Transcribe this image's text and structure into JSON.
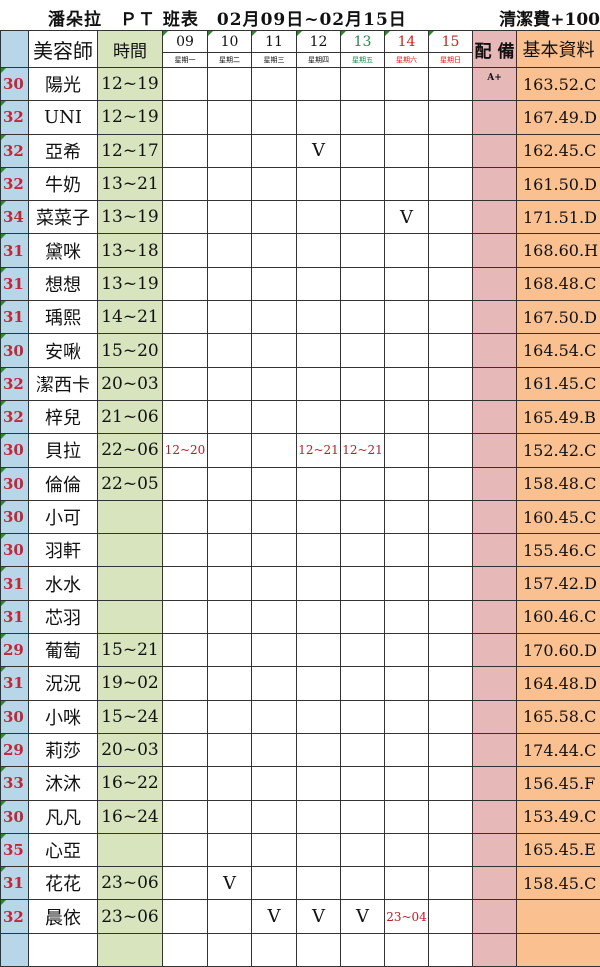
{
  "title": "潘朵拉　ＰＴ 班表　02月09日~02月15日",
  "fee": "清潔費+100",
  "headers": {
    "beautician": "美容師",
    "time": "時間",
    "equip": "配 備",
    "info": "基本資料"
  },
  "days": [
    {
      "date": "09",
      "weekday": "星期一",
      "color": "normal"
    },
    {
      "date": "10",
      "weekday": "星期二",
      "color": "normal"
    },
    {
      "date": "11",
      "weekday": "星期三",
      "color": "normal"
    },
    {
      "date": "12",
      "weekday": "星期四",
      "color": "normal"
    },
    {
      "date": "13",
      "weekday": "星期五",
      "color": "green"
    },
    {
      "date": "14",
      "weekday": "星期六",
      "color": "red"
    },
    {
      "date": "15",
      "weekday": "星期日",
      "color": "red"
    }
  ],
  "colors": {
    "num_bg": "#b7d7e8",
    "time_bg": "#d7e4bd",
    "equip_bg": "#e6b9b8",
    "info_bg": "#fac090",
    "num_text": "#c0283a",
    "green": "#1e8a4a",
    "red": "#d42020"
  },
  "rows": [
    {
      "num": "30",
      "name": "陽光",
      "time": "12~19",
      "days": [
        "",
        "",
        "",
        "",
        "",
        "",
        ""
      ],
      "equip": "A+",
      "info": "163.52.C"
    },
    {
      "num": "32",
      "name": "UNI",
      "time": "12~19",
      "days": [
        "",
        "",
        "",
        "",
        "",
        "",
        ""
      ],
      "equip": "",
      "info": "167.49.D"
    },
    {
      "num": "32",
      "name": "亞希",
      "time": "12~17",
      "days": [
        "",
        "",
        "",
        "V",
        "",
        "",
        ""
      ],
      "equip": "",
      "info": "162.45.C"
    },
    {
      "num": "32",
      "name": "牛奶",
      "time": "13~21",
      "days": [
        "",
        "",
        "",
        "",
        "",
        "",
        ""
      ],
      "equip": "",
      "info": "161.50.D"
    },
    {
      "num": "34",
      "name": "菜菜子",
      "time": "13~19",
      "days": [
        "",
        "",
        "",
        "",
        "",
        "V",
        ""
      ],
      "equip": "",
      "info": "171.51.D"
    },
    {
      "num": "31",
      "name": "黛咪",
      "time": "13~18",
      "days": [
        "",
        "",
        "",
        "",
        "",
        "",
        ""
      ],
      "equip": "",
      "info": "168.60.H"
    },
    {
      "num": "31",
      "name": "想想",
      "time": "13~19",
      "days": [
        "",
        "",
        "",
        "",
        "",
        "",
        ""
      ],
      "equip": "",
      "info": "168.48.C"
    },
    {
      "num": "31",
      "name": "瑀熙",
      "time": "14~21",
      "days": [
        "",
        "",
        "",
        "",
        "",
        "",
        ""
      ],
      "equip": "",
      "info": "167.50.D"
    },
    {
      "num": "30",
      "name": "安啾",
      "time": "15~20",
      "days": [
        "",
        "",
        "",
        "",
        "",
        "",
        ""
      ],
      "equip": "",
      "info": "164.54.C"
    },
    {
      "num": "32",
      "name": "潔西卡",
      "time": "20~03",
      "days": [
        "",
        "",
        "",
        "",
        "",
        "",
        ""
      ],
      "equip": "",
      "info": "161.45.C"
    },
    {
      "num": "32",
      "name": "梓兒",
      "time": "21~06",
      "days": [
        "",
        "",
        "",
        "",
        "",
        "",
        ""
      ],
      "equip": "",
      "info": "165.49.B"
    },
    {
      "num": "30",
      "name": "貝拉",
      "time": "22~06",
      "days": [
        "12~20",
        "",
        "",
        "12~21",
        "12~21",
        "",
        ""
      ],
      "equip": "",
      "info": "152.42.C"
    },
    {
      "num": "30",
      "name": "倫倫",
      "time": "22~05",
      "days": [
        "",
        "",
        "",
        "",
        "",
        "",
        ""
      ],
      "equip": "",
      "info": "158.48.C"
    },
    {
      "num": "30",
      "name": "小可",
      "time": "",
      "days": [
        "",
        "",
        "",
        "",
        "",
        "",
        ""
      ],
      "equip": "",
      "info": "160.45.C"
    },
    {
      "num": "30",
      "name": "羽軒",
      "time": "",
      "days": [
        "",
        "",
        "",
        "",
        "",
        "",
        ""
      ],
      "equip": "",
      "info": "155.46.C"
    },
    {
      "num": "31",
      "name": "水水",
      "time": "",
      "days": [
        "",
        "",
        "",
        "",
        "",
        "",
        ""
      ],
      "equip": "",
      "info": "157.42.D"
    },
    {
      "num": "31",
      "name": "芯羽",
      "time": "",
      "days": [
        "",
        "",
        "",
        "",
        "",
        "",
        ""
      ],
      "equip": "",
      "info": "160.46.C"
    },
    {
      "num": "29",
      "name": "葡萄",
      "time": "15~21",
      "days": [
        "",
        "",
        "",
        "",
        "",
        "",
        ""
      ],
      "equip": "",
      "info": "170.60.D"
    },
    {
      "num": "31",
      "name": "況況",
      "time": "19~02",
      "days": [
        "",
        "",
        "",
        "",
        "",
        "",
        ""
      ],
      "equip": "",
      "info": "164.48.D"
    },
    {
      "num": "30",
      "name": "小咪",
      "time": "15~24",
      "days": [
        "",
        "",
        "",
        "",
        "",
        "",
        ""
      ],
      "equip": "",
      "info": "165.58.C"
    },
    {
      "num": "29",
      "name": "莉莎",
      "time": "20~03",
      "days": [
        "",
        "",
        "",
        "",
        "",
        "",
        ""
      ],
      "equip": "",
      "info": "174.44.C"
    },
    {
      "num": "33",
      "name": "沐沐",
      "time": "16~22",
      "days": [
        "",
        "",
        "",
        "",
        "",
        "",
        ""
      ],
      "equip": "",
      "info": "156.45.F"
    },
    {
      "num": "30",
      "name": "凡凡",
      "time": "16~24",
      "days": [
        "",
        "",
        "",
        "",
        "",
        "",
        ""
      ],
      "equip": "",
      "info": "153.49.C"
    },
    {
      "num": "35",
      "name": "心亞",
      "time": "",
      "days": [
        "",
        "",
        "",
        "",
        "",
        "",
        ""
      ],
      "equip": "",
      "info": "165.45.E"
    },
    {
      "num": "31",
      "name": "花花",
      "time": "23~06",
      "days": [
        "",
        "V",
        "",
        "",
        "",
        "",
        ""
      ],
      "equip": "",
      "info": "158.45.C"
    },
    {
      "num": "32",
      "name": "晨依",
      "time": "23~06",
      "days": [
        "",
        "",
        "V",
        "V",
        "V",
        "23~04",
        ""
      ],
      "equip": "",
      "info": ""
    },
    {
      "num": "",
      "name": "",
      "time": "",
      "days": [
        "",
        "",
        "",
        "",
        "",
        "",
        ""
      ],
      "equip": "",
      "info": ""
    }
  ]
}
